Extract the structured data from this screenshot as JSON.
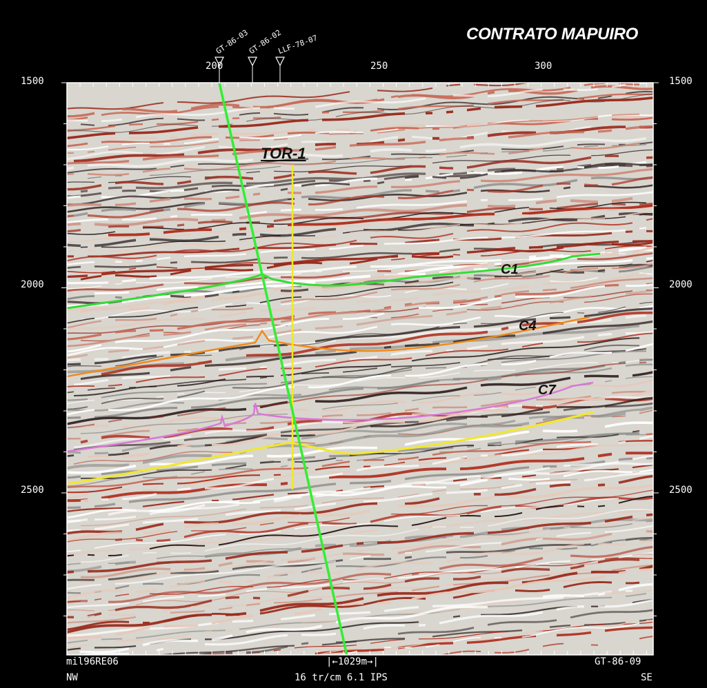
{
  "title": "CONTRATO MAPUIRO",
  "left_axis": [
    "1500",
    "2000",
    "2500"
  ],
  "right_axis": [
    "1500",
    "2000",
    "2500"
  ],
  "top_axis": [
    "200",
    "250",
    "300"
  ],
  "wells": [
    {
      "name": "GT-86-03"
    },
    {
      "name": "GT-86-02"
    },
    {
      "name": "LLF-78-07"
    }
  ],
  "well_marker": "TOR-1",
  "horizons": [
    {
      "name": "C1",
      "color": "#33dd33"
    },
    {
      "name": "C4",
      "color": "#f08a1a"
    },
    {
      "name": "C7",
      "color": "#d878d8"
    },
    {
      "name": "",
      "color": "#f2e82a"
    }
  ],
  "fault_color": "#33ee33",
  "footer": {
    "left_top": "mil96RE06",
    "left_bottom": "NW",
    "scale": "1029m",
    "center_bottom": "16 tr/cm 6.1 IPS",
    "right_top": "GT-86-09",
    "right_bottom": "SE"
  }
}
